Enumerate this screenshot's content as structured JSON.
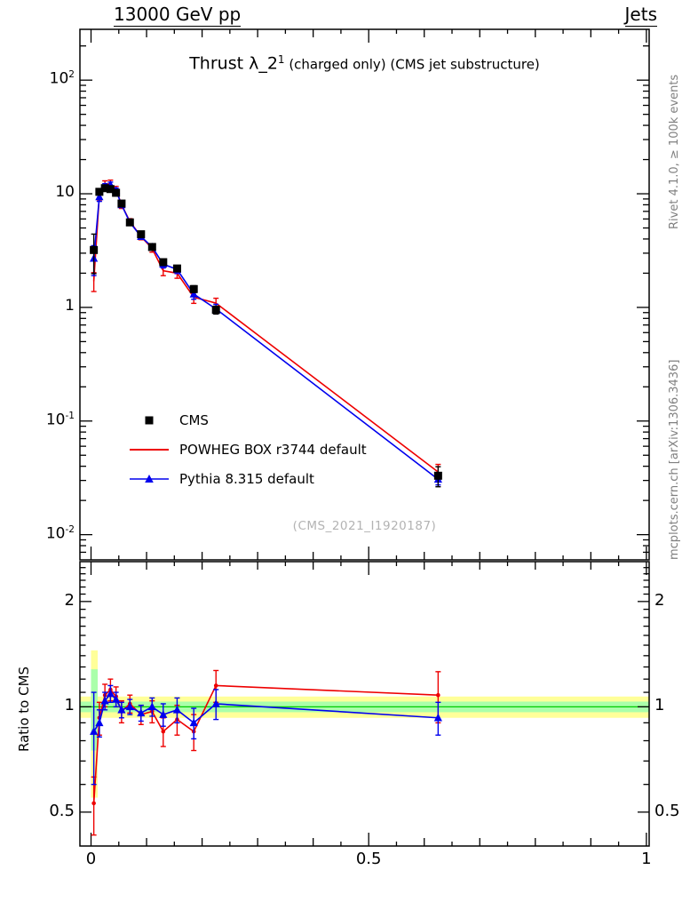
{
  "header": {
    "left": "13000 GeV pp",
    "right": "Jets"
  },
  "title": {
    "main": "Thrust λ_2",
    "superscript": "1",
    "suffix": " (charged only) (CMS jet substructure)"
  },
  "watermark": "(CMS_2021_I1920187)",
  "side_labels": {
    "rivet": "Rivet 4.1.0, ≥ 100k events",
    "mcplots": "mcplots.cern.ch [arXiv:1306.3436]",
    "ratio_axis": "Ratio to CMS"
  },
  "legend": [
    {
      "label": "CMS",
      "marker": "square",
      "color": "#000000"
    },
    {
      "label": "POWHEG BOX r3744 default",
      "marker": "line",
      "color": "#ee0000"
    },
    {
      "label": "Pythia 8.315 default",
      "marker": "triangle-line",
      "color": "#0000ee"
    }
  ],
  "axes": {
    "x_ticks": [
      {
        "label": "0",
        "v": 0
      },
      {
        "label": "0.5",
        "v": 0.5
      },
      {
        "label": "1",
        "v": 1
      }
    ],
    "main_y_ticks": [
      {
        "label": "10^2",
        "v": 100
      },
      {
        "label": "10",
        "v": 10
      },
      {
        "label": "1",
        "v": 1
      },
      {
        "label": "10^-1",
        "v": 0.1
      },
      {
        "label": "10^-2",
        "v": 0.01
      }
    ],
    "ratio_y_ticks": [
      {
        "label": "2",
        "v": 2
      },
      {
        "label": "1",
        "v": 1
      },
      {
        "label": "0.5",
        "v": 0.5
      }
    ]
  },
  "chart_data": {
    "type": "line",
    "title": "Thrust λ_2^1 (charged only) (CMS jet substructure)",
    "xlabel": "",
    "ylabel": "",
    "ratio_ylabel": "Ratio to CMS",
    "legend_position": "middle-left",
    "grid": false,
    "xlim": [
      -0.02,
      1.005
    ],
    "main_ylim_log": [
      0.006,
      280
    ],
    "ratio_ylim_log": [
      0.4,
      2.6
    ],
    "x": [
      0.005,
      0.015,
      0.025,
      0.035,
      0.045,
      0.055,
      0.07,
      0.09,
      0.11,
      0.13,
      0.155,
      0.185,
      0.225,
      0.625
    ],
    "series": [
      {
        "name": "CMS",
        "color": "#000000",
        "marker": "square",
        "draw_line": false,
        "values": [
          3.2,
          10.4,
          11.2,
          11.0,
          10.2,
          8.2,
          5.6,
          4.4,
          3.4,
          2.5,
          2.2,
          1.45,
          0.95,
          0.033
        ],
        "rel_err": [
          0.38,
          0.05,
          0.04,
          0.04,
          0.04,
          0.04,
          0.04,
          0.045,
          0.05,
          0.055,
          0.06,
          0.07,
          0.08,
          0.2
        ]
      },
      {
        "name": "POWHEG BOX r3744 default",
        "color": "#ee0000",
        "marker": "dot",
        "draw_line": true,
        "values": [
          1.7,
          9.7,
          12.1,
          12.3,
          10.9,
          8.0,
          5.7,
          4.2,
          3.3,
          2.1,
          2.0,
          1.23,
          1.09,
          0.0356
        ],
        "ratio": [
          0.53,
          0.93,
          1.08,
          1.12,
          1.07,
          0.97,
          1.02,
          0.95,
          0.97,
          0.85,
          0.92,
          0.85,
          1.15,
          1.08
        ],
        "ratio_err": [
          0.1,
          0.1,
          0.08,
          0.08,
          0.07,
          0.07,
          0.06,
          0.06,
          0.07,
          0.08,
          0.09,
          0.1,
          0.12,
          0.18
        ]
      },
      {
        "name": "Pythia 8.315 default",
        "color": "#0000ee",
        "marker": "triangle",
        "draw_line": true,
        "values": [
          2.7,
          9.4,
          11.6,
          12.0,
          10.7,
          8.0,
          5.6,
          4.2,
          3.4,
          2.4,
          2.16,
          1.31,
          0.97,
          0.0307
        ],
        "ratio": [
          0.85,
          0.9,
          1.04,
          1.09,
          1.05,
          0.98,
          1.0,
          0.96,
          1.0,
          0.95,
          0.98,
          0.9,
          1.02,
          0.93
        ],
        "ratio_err": [
          0.25,
          0.08,
          0.06,
          0.06,
          0.05,
          0.05,
          0.05,
          0.05,
          0.06,
          0.07,
          0.08,
          0.09,
          0.1,
          0.1
        ]
      }
    ],
    "ratio_band": {
      "yellow": [
        0.93,
        1.07
      ],
      "green": [
        0.965,
        1.035
      ],
      "yellow_color": "#ffff99",
      "green_color": "#aaffaa",
      "line_color": "#00cc00",
      "first_bin": {
        "x0": 0.0,
        "x1": 0.012,
        "yellow": [
          0.55,
          1.45
        ],
        "green": [
          0.75,
          1.28
        ]
      }
    }
  }
}
